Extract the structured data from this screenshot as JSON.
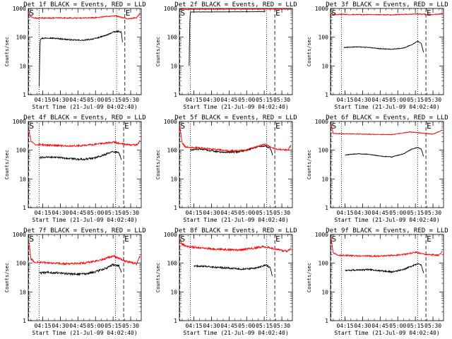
{
  "figure": {
    "background": "#ffffff",
    "axis_color": "#000000",
    "events_color": "#000000",
    "lld_color": "#ff0000",
    "marker_color": "#000000"
  },
  "chart_data": [
    {
      "type": "line",
      "title": "Det 1f BLACK = Events, RED = LLD",
      "xlabel": "Start Time (21-Jul-09 04:02:40)",
      "ylabel": "Counts/sec",
      "y_scale": "log",
      "ylim": [
        1,
        1000
      ],
      "y_ticks": [
        "1",
        "10",
        "100",
        "1000"
      ],
      "x_ticks": [
        "04:15",
        "04:30",
        "04:45",
        "05:00",
        "05:15",
        "05:30"
      ],
      "x_range_minutes": [
        "04:02:40",
        "05:39:00"
      ],
      "markers": [
        {
          "label": "S",
          "time": "04:03"
        },
        {
          "label": "E",
          "time": "05:25"
        }
      ],
      "dotted_lines": [
        "04:12",
        "05:18"
      ],
      "series": [
        {
          "name": "BLACK = Events",
          "color": "#000000",
          "noise": 0.02,
          "x": [
            "04:12",
            "04:12:30",
            "04:13",
            "04:20",
            "04:30",
            "04:40",
            "04:50",
            "05:00",
            "05:10",
            "05:15",
            "05:20",
            "05:22",
            "05:23"
          ],
          "y": [
            2,
            30,
            90,
            95,
            88,
            80,
            78,
            90,
            120,
            150,
            160,
            150,
            70
          ]
        },
        {
          "name": "RED = LLD",
          "color": "#ff0000",
          "noise": 0.02,
          "x": [
            "04:03",
            "04:04",
            "04:06",
            "04:10",
            "04:30",
            "04:45",
            "05:00",
            "05:15",
            "05:20",
            "05:28",
            "05:35",
            "05:38"
          ],
          "y": [
            800,
            550,
            480,
            460,
            470,
            460,
            480,
            560,
            520,
            430,
            480,
            650
          ]
        }
      ]
    },
    {
      "type": "line",
      "title": "Det 2f BLACK = Events, RED = LLD",
      "xlabel": "Start Time (21-Jul-09 04:02:40)",
      "ylabel": "Counts/sec",
      "y_scale": "log",
      "ylim": [
        1,
        1000
      ],
      "y_ticks": [
        "1",
        "10",
        "100",
        "1000"
      ],
      "x_ticks": [
        "04:15",
        "04:30",
        "04:45",
        "05:00",
        "05:15",
        "05:30"
      ],
      "x_range_minutes": [
        "04:02:40",
        "05:39:00"
      ],
      "markers": [
        {
          "label": "S",
          "time": "04:03"
        },
        {
          "label": "E",
          "time": "05:24"
        }
      ],
      "dotted_lines": [
        "04:12",
        "05:17"
      ],
      "series": [
        {
          "name": "BLACK = Events",
          "color": "#000000",
          "noise": 0.005,
          "x": [
            "04:11",
            "04:11:30",
            "04:12",
            "04:20",
            "04:40",
            "05:00",
            "05:10",
            "05:15",
            "05:16"
          ],
          "y": [
            10,
            300,
            750,
            760,
            760,
            770,
            780,
            790,
            800
          ]
        },
        {
          "name": "RED = LLD",
          "color": "#ff0000",
          "noise": 0.01,
          "x": [
            "04:03",
            "04:05",
            "04:08",
            "04:30",
            "05:00",
            "05:20",
            "05:38"
          ],
          "y": [
            900,
            950,
            940,
            940,
            950,
            950,
            950
          ]
        }
      ]
    },
    {
      "type": "line",
      "title": "Det 3f BLACK = Events, RED = LLD",
      "xlabel": "Start Time (21-Jul-09 04:02:40)",
      "ylabel": "Counts/sec",
      "y_scale": "log",
      "ylim": [
        1,
        1000
      ],
      "y_ticks": [
        "1",
        "10",
        "100",
        "1000"
      ],
      "x_ticks": [
        "04:15",
        "04:30",
        "04:45",
        "05:00",
        "05:15",
        "05:30"
      ],
      "x_range_minutes": [
        "04:02:40",
        "05:39:00"
      ],
      "markers": [
        {
          "label": "S",
          "time": "04:03"
        },
        {
          "label": "E",
          "time": "05:24"
        }
      ],
      "dotted_lines": [
        "04:12",
        "05:17"
      ],
      "series": [
        {
          "name": "BLACK = Events",
          "color": "#000000",
          "noise": 0.012,
          "x": [
            "04:14",
            "04:25",
            "04:35",
            "04:45",
            "04:55",
            "05:05",
            "05:12",
            "05:17",
            "05:20",
            "05:22"
          ],
          "y": [
            44,
            46,
            44,
            40,
            38,
            42,
            55,
            72,
            60,
            30
          ]
        },
        {
          "name": "RED = LLD",
          "color": "#ff0000",
          "noise": 0.015,
          "x": [
            "04:03",
            "04:05",
            "04:15",
            "04:35",
            "04:55",
            "05:15",
            "05:30",
            "05:38"
          ],
          "y": [
            700,
            620,
            620,
            610,
            600,
            640,
            610,
            660
          ]
        }
      ]
    },
    {
      "type": "line",
      "title": "Det 4f BLACK = Events, RED = LLD",
      "xlabel": "Start Time (21-Jul-09 04:02:40)",
      "ylabel": "Counts/sec",
      "y_scale": "log",
      "ylim": [
        1,
        1000
      ],
      "y_ticks": [
        "1",
        "10",
        "100",
        "1000"
      ],
      "x_ticks": [
        "04:15",
        "04:30",
        "04:45",
        "05:00",
        "05:15",
        "05:30"
      ],
      "x_range_minutes": [
        "04:02:40",
        "05:39:00"
      ],
      "markers": [
        {
          "label": "S",
          "time": "04:03"
        },
        {
          "label": "E",
          "time": "05:24"
        }
      ],
      "dotted_lines": [
        "04:12",
        "05:17"
      ],
      "series": [
        {
          "name": "BLACK = Events",
          "color": "#000000",
          "noise": 0.03,
          "x": [
            "04:12",
            "04:20",
            "04:30",
            "04:40",
            "04:50",
            "05:00",
            "05:10",
            "05:15",
            "05:20",
            "05:22"
          ],
          "y": [
            55,
            58,
            55,
            50,
            48,
            55,
            75,
            90,
            80,
            45
          ]
        },
        {
          "name": "RED = LLD",
          "color": "#ff0000",
          "noise": 0.03,
          "x": [
            "04:03",
            "04:05",
            "04:08",
            "04:20",
            "04:35",
            "04:50",
            "05:05",
            "05:15",
            "05:25",
            "05:35",
            "05:38"
          ],
          "y": [
            600,
            200,
            160,
            150,
            140,
            145,
            170,
            190,
            160,
            150,
            210
          ]
        }
      ]
    },
    {
      "type": "line",
      "title": "Det 5f BLACK = Events, RED = LLD",
      "xlabel": "Start Time (21-Jul-09 04:02:40)",
      "ylabel": "Counts/sec",
      "y_scale": "log",
      "ylim": [
        1,
        1000
      ],
      "y_ticks": [
        "1",
        "10",
        "100",
        "1000"
      ],
      "x_ticks": [
        "04:15",
        "04:30",
        "04:45",
        "05:00",
        "05:15",
        "05:30"
      ],
      "x_range_minutes": [
        "04:02:40",
        "05:39:00"
      ],
      "markers": [
        {
          "label": "S",
          "time": "04:03"
        },
        {
          "label": "E",
          "time": "05:24"
        }
      ],
      "dotted_lines": [
        "04:12",
        "05:17"
      ],
      "series": [
        {
          "name": "BLACK = Events",
          "color": "#000000",
          "noise": 0.025,
          "x": [
            "04:12",
            "04:20",
            "04:30",
            "04:40",
            "04:50",
            "05:00",
            "05:10",
            "05:15",
            "05:20",
            "05:22"
          ],
          "y": [
            100,
            110,
            95,
            85,
            85,
            100,
            135,
            140,
            120,
            70
          ]
        },
        {
          "name": "RED = LLD",
          "color": "#ff0000",
          "noise": 0.025,
          "x": [
            "04:03",
            "04:05",
            "04:08",
            "04:20",
            "04:30",
            "04:45",
            "05:00",
            "05:10",
            "05:15",
            "05:25",
            "05:35",
            "05:38"
          ],
          "y": [
            700,
            180,
            130,
            120,
            110,
            95,
            100,
            140,
            160,
            110,
            100,
            150
          ]
        }
      ]
    },
    {
      "type": "line",
      "title": "Det 6f BLACK = Events, RED = LLD",
      "xlabel": "Start Time (21-Jul-09 04:02:40)",
      "ylabel": "Counts/sec",
      "y_scale": "log",
      "ylim": [
        1,
        1000
      ],
      "y_ticks": [
        "1",
        "10",
        "100",
        "1000"
      ],
      "x_ticks": [
        "04:15",
        "04:30",
        "04:45",
        "05:00",
        "05:15",
        "05:30"
      ],
      "x_range_minutes": [
        "04:02:40",
        "05:39:00"
      ],
      "markers": [
        {
          "label": "S",
          "time": "04:03"
        },
        {
          "label": "E",
          "time": "05:24"
        }
      ],
      "dotted_lines": [
        "04:12",
        "05:17"
      ],
      "series": [
        {
          "name": "BLACK = Events",
          "color": "#000000",
          "noise": 0.012,
          "x": [
            "04:15",
            "04:25",
            "04:35",
            "04:45",
            "04:55",
            "05:05",
            "05:12",
            "05:17",
            "05:20",
            "05:22"
          ],
          "y": [
            68,
            75,
            72,
            62,
            58,
            75,
            110,
            125,
            110,
            60
          ]
        },
        {
          "name": "RED = LLD",
          "color": "#ff0000",
          "noise": 0.012,
          "x": [
            "04:03",
            "04:05",
            "04:15",
            "04:35",
            "04:55",
            "05:10",
            "05:20",
            "05:30",
            "05:38"
          ],
          "y": [
            800,
            380,
            370,
            360,
            350,
            430,
            400,
            360,
            500
          ]
        }
      ]
    },
    {
      "type": "line",
      "title": "Det 7f BLACK = Events, RED = LLD",
      "xlabel": "Start Time (21-Jul-09 04:02:40)",
      "ylabel": "Counts/sec",
      "y_scale": "log",
      "ylim": [
        1,
        1000
      ],
      "y_ticks": [
        "1",
        "10",
        "100",
        "1000"
      ],
      "x_ticks": [
        "04:15",
        "04:30",
        "04:45",
        "05:00",
        "05:15",
        "05:30"
      ],
      "x_range_minutes": [
        "04:02:40",
        "05:39:00"
      ],
      "markers": [
        {
          "label": "S",
          "time": "04:03"
        },
        {
          "label": "E",
          "time": "05:24"
        }
      ],
      "dotted_lines": [
        "04:12",
        "05:17"
      ],
      "series": [
        {
          "name": "BLACK = Events",
          "color": "#000000",
          "noise": 0.035,
          "x": [
            "04:12",
            "04:20",
            "04:30",
            "04:40",
            "04:50",
            "05:00",
            "05:10",
            "05:15",
            "05:20",
            "05:22"
          ],
          "y": [
            45,
            48,
            45,
            42,
            42,
            50,
            70,
            90,
            80,
            45
          ]
        },
        {
          "name": "RED = LLD",
          "color": "#ff0000",
          "noise": 0.035,
          "x": [
            "04:03",
            "04:05",
            "04:08",
            "04:20",
            "04:35",
            "04:50",
            "05:05",
            "05:15",
            "05:25",
            "05:35",
            "05:38"
          ],
          "y": [
            600,
            140,
            110,
            100,
            95,
            100,
            130,
            180,
            120,
            95,
            180
          ]
        }
      ]
    },
    {
      "type": "line",
      "title": "Det 8f BLACK = Events, RED = LLD",
      "xlabel": "Start Time (21-Jul-09 04:02:40)",
      "ylabel": "Counts/sec",
      "y_scale": "log",
      "ylim": [
        1,
        1000
      ],
      "y_ticks": [
        "1",
        "10",
        "100",
        "1000"
      ],
      "x_ticks": [
        "04:15",
        "04:30",
        "04:45",
        "05:00",
        "05:15",
        "05:30"
      ],
      "x_range_minutes": [
        "04:02:40",
        "05:39:00"
      ],
      "markers": [
        {
          "label": "S",
          "time": "04:03"
        },
        {
          "label": "E",
          "time": "05:24"
        }
      ],
      "dotted_lines": [
        "04:12",
        "05:17"
      ],
      "series": [
        {
          "name": "BLACK = Events",
          "color": "#000000",
          "noise": 0.03,
          "x": [
            "04:15",
            "04:25",
            "04:35",
            "04:45",
            "04:55",
            "05:05",
            "05:12",
            "05:17",
            "05:20",
            "05:22"
          ],
          "y": [
            80,
            78,
            72,
            68,
            62,
            65,
            75,
            85,
            70,
            35
          ]
        },
        {
          "name": "RED = LLD",
          "color": "#ff0000",
          "noise": 0.035,
          "x": [
            "04:03",
            "04:05",
            "04:10",
            "04:25",
            "04:40",
            "04:55",
            "05:05",
            "05:15",
            "05:25",
            "05:35",
            "05:38"
          ],
          "y": [
            700,
            450,
            380,
            330,
            300,
            290,
            330,
            380,
            300,
            260,
            330
          ]
        }
      ]
    },
    {
      "type": "line",
      "title": "Det 9f BLACK = Events, RED = LLD",
      "xlabel": "Start Time (21-Jul-09 04:02:40)",
      "ylabel": "Counts/sec",
      "y_scale": "log",
      "ylim": [
        1,
        1000
      ],
      "y_ticks": [
        "1",
        "10",
        "100",
        "1000"
      ],
      "x_ticks": [
        "04:15",
        "04:30",
        "04:45",
        "05:00",
        "05:15",
        "05:30"
      ],
      "x_range_minutes": [
        "04:02:40",
        "05:39:00"
      ],
      "markers": [
        {
          "label": "S",
          "time": "04:03"
        },
        {
          "label": "E",
          "time": "05:24"
        }
      ],
      "dotted_lines": [
        "04:12",
        "05:17"
      ],
      "series": [
        {
          "name": "BLACK = Events",
          "color": "#000000",
          "noise": 0.025,
          "x": [
            "04:15",
            "04:25",
            "04:35",
            "04:45",
            "04:55",
            "05:05",
            "05:12",
            "05:17",
            "05:20",
            "05:22"
          ],
          "y": [
            55,
            58,
            60,
            55,
            50,
            60,
            80,
            95,
            85,
            45
          ]
        },
        {
          "name": "RED = LLD",
          "color": "#ff0000",
          "noise": 0.025,
          "x": [
            "04:03",
            "04:05",
            "04:10",
            "04:25",
            "04:40",
            "04:55",
            "05:05",
            "05:15",
            "05:25",
            "05:35",
            "05:38"
          ],
          "y": [
            800,
            220,
            190,
            180,
            175,
            185,
            200,
            240,
            200,
            190,
            260
          ]
        }
      ]
    }
  ]
}
